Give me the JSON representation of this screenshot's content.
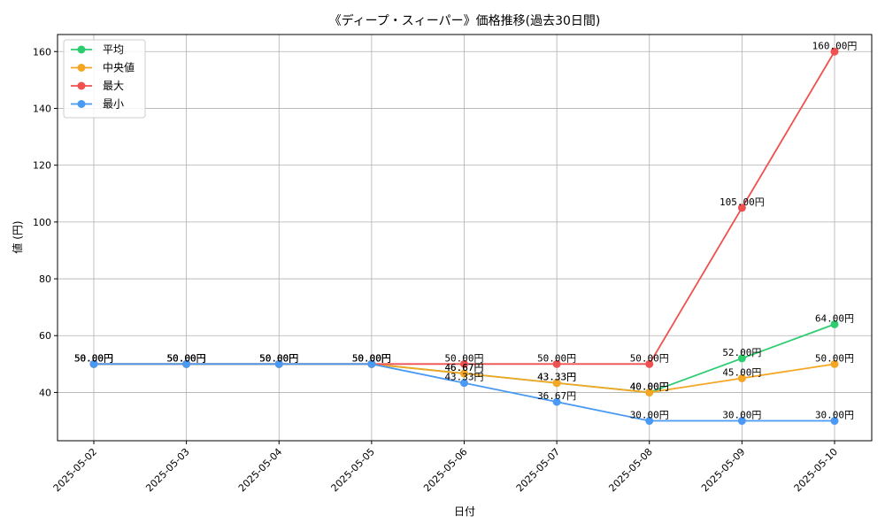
{
  "chart_data": {
    "type": "line",
    "title": "《ディープ・スィーパー》価格推移(過去30日間)",
    "xlabel": "日付",
    "ylabel": "値 (円)",
    "categories": [
      "2025-05-02",
      "2025-05-03",
      "2025-05-04",
      "2025-05-05",
      "2025-05-06",
      "2025-05-07",
      "2025-05-08",
      "2025-05-09",
      "2025-05-10"
    ],
    "yticks": [
      40,
      60,
      80,
      100,
      120,
      140,
      160
    ],
    "ylim": [
      23,
      166
    ],
    "grid": true,
    "legend_position": "top-left",
    "value_suffix": "円",
    "series": [
      {
        "name": "平均",
        "color": "#2ecc71",
        "values": [
          50,
          50,
          50,
          50,
          46.67,
          43.33,
          40,
          52,
          64
        ]
      },
      {
        "name": "中央値",
        "color": "#f5a623",
        "values": [
          50,
          50,
          50,
          50,
          46.67,
          43.33,
          40,
          45,
          50
        ]
      },
      {
        "name": "最大",
        "color": "#f05050",
        "values": [
          50,
          50,
          50,
          50,
          50,
          50,
          50,
          105,
          160
        ]
      },
      {
        "name": "最小",
        "color": "#4a9af5",
        "values": [
          50,
          50,
          50,
          50,
          43.33,
          36.67,
          30,
          30,
          30
        ]
      }
    ]
  }
}
